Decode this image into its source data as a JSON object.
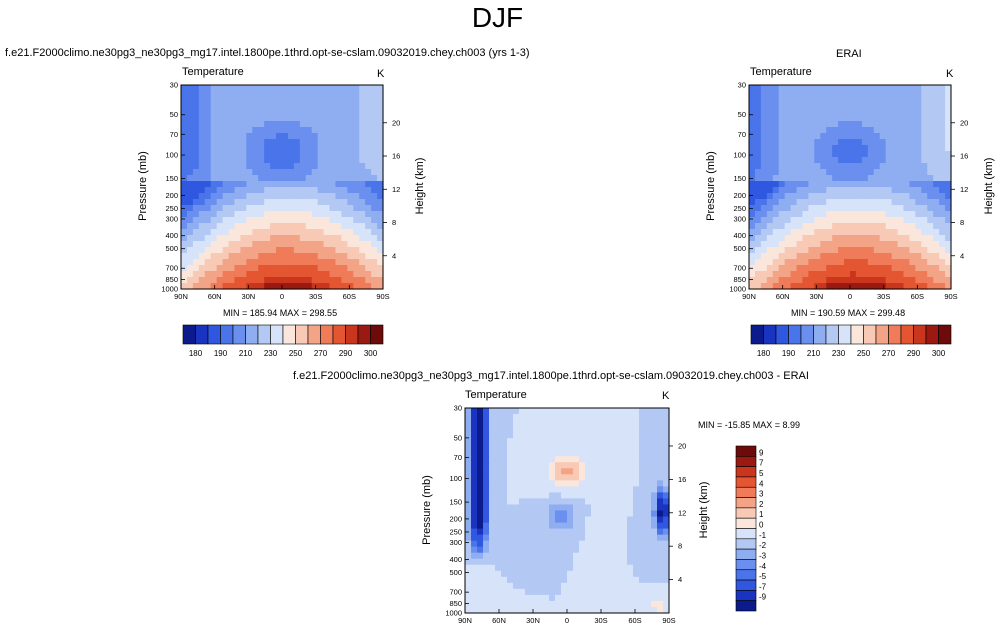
{
  "figure": {
    "title": "DJF",
    "panel1": {
      "title": "f.e21.F2000climo.ne30pg3_ne30pg3_mg17.intel.1800pe.1thrd.opt-se-cslam.09032019.chey.ch003 (yrs 1-3)",
      "variable": "Temperature",
      "units": "K",
      "stats": "MIN = 185.94  MAX = 298.55",
      "ylabel": "Pressure (mb)",
      "y2label": "Height (km)"
    },
    "panel2": {
      "title": "ERAI",
      "variable": "Temperature",
      "units": "K",
      "stats": "MIN = 190.59  MAX = 299.48",
      "ylabel": "Pressure (mb)",
      "y2label": "Height (km)"
    },
    "panel3": {
      "title": "f.e21.F2000climo.ne30pg3_ne30pg3_mg17.intel.1800pe.1thrd.opt-se-cslam.09032019.chey.ch003 - ERAI",
      "variable": "Temperature",
      "units": "K",
      "stats": "MIN = -15.85  MAX =   8.99",
      "ylabel": "Pressure (mb)",
      "y2label": "Height (km)"
    }
  },
  "chart_data": [
    {
      "type": "heatmap",
      "title": "f.e21.F2000climo.ne30pg3_ne30pg3_mg17.intel.1800pe.1thrd.opt-se-cslam.09032019.chey.ch003 (yrs 1-3)",
      "variable": "Temperature",
      "units": "K",
      "xlabel": "",
      "ylabel": "Pressure (mb)",
      "y2label": "Height (km)",
      "x_ticks": [
        "90N",
        "60N",
        "30N",
        "0",
        "30S",
        "60S",
        "90S"
      ],
      "y_ticks": [
        30,
        50,
        70,
        100,
        150,
        200,
        250,
        300,
        400,
        500,
        700,
        850,
        1000
      ],
      "y2_ticks": [
        4,
        8,
        12,
        16,
        20
      ],
      "min": 185.94,
      "max": 298.55,
      "colorbar_labels": [
        180,
        190,
        210,
        230,
        250,
        270,
        290,
        300
      ],
      "colorbar_levels": [
        180,
        185,
        190,
        200,
        210,
        220,
        230,
        240,
        250,
        260,
        270,
        280,
        290,
        295,
        300
      ],
      "colors": [
        "#0c1b8c",
        "#1a33c1",
        "#2f57e0",
        "#4a74e9",
        "#6a8fee",
        "#8fadf1",
        "#b3c9f4",
        "#d6e3f8",
        "#fbe6dc",
        "#f8c9b4",
        "#f4a486",
        "#ef7b58",
        "#e45531",
        "#c9361d",
        "#9a1a12",
        "#6d0a0a"
      ],
      "field": "model"
    },
    {
      "type": "heatmap",
      "title": "ERAI",
      "variable": "Temperature",
      "units": "K",
      "xlabel": "",
      "ylabel": "Pressure (mb)",
      "y2label": "Height (km)",
      "x_ticks": [
        "90N",
        "60N",
        "30N",
        "0",
        "30S",
        "60S",
        "90S"
      ],
      "y_ticks": [
        30,
        50,
        70,
        100,
        150,
        200,
        250,
        300,
        400,
        500,
        700,
        850,
        1000
      ],
      "y2_ticks": [
        4,
        8,
        12,
        16,
        20
      ],
      "min": 190.59,
      "max": 299.48,
      "colorbar_labels": [
        180,
        190,
        210,
        230,
        250,
        270,
        290,
        300
      ],
      "colorbar_levels": [
        180,
        185,
        190,
        200,
        210,
        220,
        230,
        240,
        250,
        260,
        270,
        280,
        290,
        295,
        300
      ],
      "colors": [
        "#0c1b8c",
        "#1a33c1",
        "#2f57e0",
        "#4a74e9",
        "#6a8fee",
        "#8fadf1",
        "#b3c9f4",
        "#d6e3f8",
        "#fbe6dc",
        "#f8c9b4",
        "#f4a486",
        "#ef7b58",
        "#e45531",
        "#c9361d",
        "#9a1a12",
        "#6d0a0a"
      ],
      "field": "obs"
    },
    {
      "type": "heatmap",
      "title": "f.e21.F2000climo.ne30pg3_ne30pg3_mg17.intel.1800pe.1thrd.opt-se-cslam.09032019.chey.ch003 - ERAI",
      "variable": "Temperature",
      "units": "K",
      "xlabel": "",
      "ylabel": "Pressure (mb)",
      "y2label": "Height (km)",
      "x_ticks": [
        "90N",
        "60N",
        "30N",
        "0",
        "30S",
        "60S",
        "90S"
      ],
      "y_ticks": [
        30,
        50,
        70,
        100,
        150,
        200,
        250,
        300,
        400,
        500,
        700,
        850,
        1000
      ],
      "y2_ticks": [
        4,
        8,
        12,
        16,
        20
      ],
      "min": -15.85,
      "max": 8.99,
      "colorbar_labels": [
        9,
        7,
        5,
        4,
        3,
        2,
        1,
        0,
        -1,
        -2,
        -3,
        -4,
        -5,
        -7,
        -9
      ],
      "colorbar_levels": [
        -9,
        -7,
        -5,
        -4,
        -3,
        -2,
        -1,
        0,
        1,
        2,
        3,
        4,
        5,
        7,
        9
      ],
      "colors": [
        "#6d0a0a",
        "#9a1a12",
        "#c9361d",
        "#e45531",
        "#ef7b58",
        "#f4a486",
        "#f8c9b4",
        "#fbe6dc",
        "#d6e3f8",
        "#b3c9f4",
        "#8fadf1",
        "#6a8fee",
        "#4a74e9",
        "#2f57e0",
        "#1a33c1",
        "#0c1b8c"
      ],
      "field": "diff"
    }
  ]
}
